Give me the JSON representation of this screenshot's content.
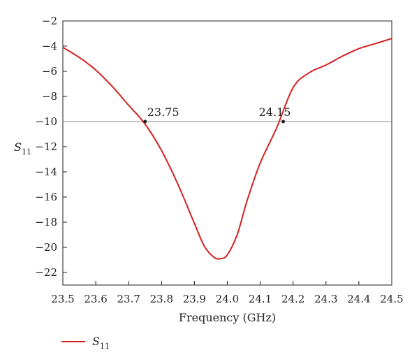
{
  "chart_data": {
    "type": "line",
    "xlabel": "Frequency (GHz)",
    "ylabel": {
      "main": "S",
      "sub": "11"
    },
    "xlim": [
      23.5,
      24.5
    ],
    "ylim": [
      -23,
      -2
    ],
    "x_ticks": [
      23.5,
      23.6,
      23.7,
      23.8,
      23.9,
      24.0,
      24.1,
      24.2,
      24.3,
      24.4,
      24.5
    ],
    "x_tick_labels": [
      "23.5",
      "23.6",
      "23.7",
      "23.8",
      "23.9",
      "24.0",
      "24.1",
      "24.2",
      "24.3",
      "24.4",
      "24.5"
    ],
    "y_ticks": [
      -2,
      -4,
      -6,
      -8,
      -10,
      -12,
      -14,
      -16,
      -18,
      -20,
      -22
    ],
    "y_tick_labels": [
      "−2",
      "−4",
      "−6",
      "−8",
      "−10",
      "−12",
      "−14",
      "−16",
      "−18",
      "−20",
      "−22"
    ],
    "grid": false,
    "reference_line": {
      "y": -10,
      "color": "#888888"
    },
    "series": [
      {
        "label": {
          "main": "S",
          "sub": "11"
        },
        "color": "#d42020",
        "x": [
          23.5,
          23.55,
          23.6,
          23.65,
          23.7,
          23.75,
          23.8,
          23.85,
          23.9,
          23.93,
          23.96,
          23.98,
          24.0,
          24.03,
          24.06,
          24.1,
          24.15,
          24.2,
          24.25,
          24.3,
          24.35,
          24.4,
          24.45,
          24.5
        ],
        "y": [
          -4.1,
          -4.9,
          -5.9,
          -7.2,
          -8.7,
          -10.2,
          -12.3,
          -15.0,
          -18.1,
          -19.9,
          -20.8,
          -20.9,
          -20.6,
          -19.0,
          -16.3,
          -13.3,
          -10.5,
          -7.3,
          -6.1,
          -5.5,
          -4.8,
          -4.2,
          -3.8,
          -3.4
        ]
      }
    ],
    "annotations": [
      {
        "x": 23.75,
        "y": -10,
        "text": "23.75"
      },
      {
        "x": 24.17,
        "y": -10,
        "text": "24.15"
      }
    ],
    "legend": {
      "placement": "bottom-left"
    }
  }
}
